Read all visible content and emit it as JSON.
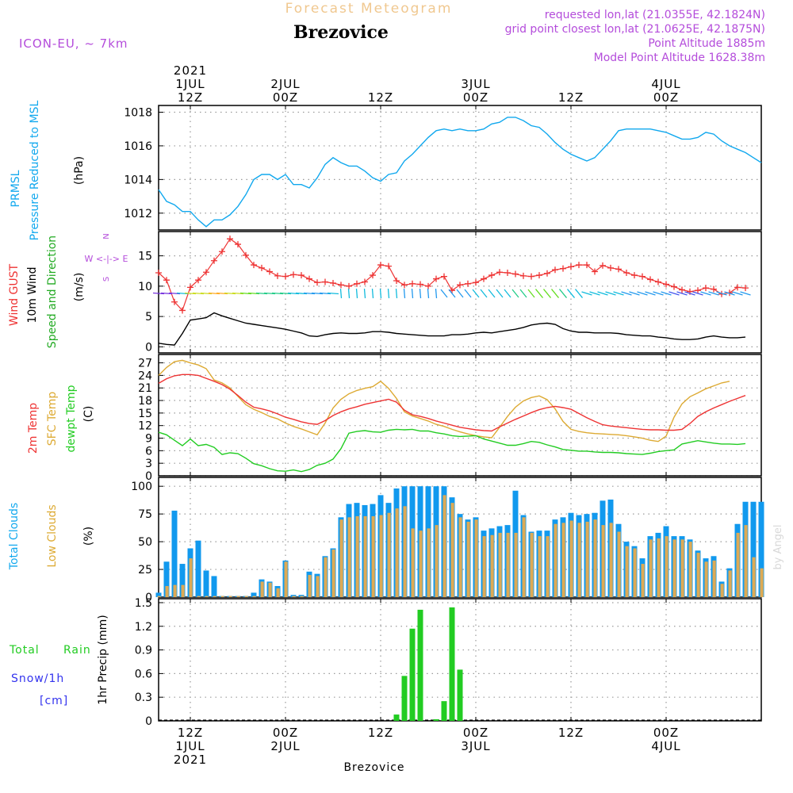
{
  "header": {
    "product": "Forecast Meteogram",
    "location": "Brezovice",
    "model": "ICON-EU, ~ 7km",
    "requested": "requested lon,lat (21.0355E, 42.1824N)",
    "gridpoint": "grid point closest lon,lat (21.0625E, 42.1875N)",
    "altitude": "Point Altitude 1885m",
    "model_altitude": "Model Point Altitude 1628.38m",
    "credit": "by Angel",
    "footer_location": "Brezovice"
  },
  "time_axis": {
    "top": [
      {
        "lines": [
          "2021",
          "1JUL",
          "12Z"
        ]
      },
      {
        "lines": [
          "2JUL",
          "00Z"
        ]
      },
      {
        "lines": [
          "12Z"
        ]
      },
      {
        "lines": [
          "3JUL",
          "00Z"
        ]
      },
      {
        "lines": [
          "12Z"
        ]
      },
      {
        "lines": [
          "4JUL",
          "00Z"
        ]
      }
    ],
    "bottom": [
      {
        "lines": [
          "12Z",
          "1JUL",
          "2021"
        ]
      },
      {
        "lines": [
          "00Z",
          "2JUL"
        ]
      },
      {
        "lines": [
          "12Z"
        ]
      },
      {
        "lines": [
          "00Z",
          "3JUL"
        ]
      },
      {
        "lines": [
          "12Z"
        ]
      },
      {
        "lines": [
          "00Z",
          "4JUL"
        ]
      }
    ],
    "tick_hours": [
      12,
      24,
      36,
      48,
      60,
      72
    ],
    "range_hours": [
      8,
      84
    ]
  },
  "panels": {
    "pressure": {
      "label1": "PRMSL",
      "label2": "Pressure Reduced to MSL",
      "unit": "(hPa)",
      "ticks": [
        "1012",
        "1014",
        "1016",
        "1018"
      ],
      "color": "#11a8ee"
    },
    "wind": {
      "label1": "Wind GUST",
      "label2": "10m Wind",
      "label3": "Speed and Direction",
      "unit": "(m/s)",
      "compass_n": "N",
      "compass_s": "S",
      "compass_ew": "W <-|-> E",
      "ticks": [
        "0",
        "5",
        "10",
        "15"
      ],
      "gust_color": "#ee3333",
      "speed_color": "#000000"
    },
    "temp": {
      "label1": "2m Temp",
      "label2": "SFC Temp",
      "label3": "dewpt Temp",
      "unit": "(C)",
      "ticks": [
        "0",
        "3",
        "6",
        "9",
        "12",
        "15",
        "18",
        "21",
        "24",
        "27"
      ],
      "t2m_color": "#ee3333",
      "sfc_color": "#ddaa33",
      "dew_color": "#22cc22"
    },
    "clouds": {
      "label1": "Total Clouds",
      "label2": "Low Clouds",
      "unit": "(%)",
      "ticks": [
        "0",
        "25",
        "50",
        "75",
        "100"
      ],
      "total_color": "#1199ee",
      "low_color": "#ddaa55"
    },
    "precip": {
      "label1": "Total",
      "label1b": "Rain",
      "label2": "Snow/1h",
      "label3": "[cm]",
      "unit": "1hr Precip (mm)",
      "ticks": [
        "0",
        "0.3",
        "0.6",
        "0.9",
        "1.2",
        "1.5"
      ],
      "rain_color": "#22cc22",
      "snow_color": "#3333ee"
    }
  },
  "chart_data": {
    "type": "line",
    "x_unit": "hours since 2021-07-01 00Z",
    "pressure": {
      "x": [
        8,
        9,
        10,
        11,
        12,
        13,
        14,
        15,
        16,
        17,
        18,
        19,
        20,
        21,
        22,
        23,
        24,
        25,
        26,
        27,
        28,
        29,
        30,
        31,
        32,
        33,
        34,
        35,
        36,
        37,
        38,
        39,
        40,
        41,
        42,
        43,
        44,
        45,
        46,
        47,
        48,
        49,
        50,
        51,
        52,
        53,
        54,
        55,
        56,
        57,
        58,
        59,
        60,
        61,
        62,
        63,
        64,
        65,
        66,
        67,
        68,
        69,
        70,
        71,
        72,
        73,
        74,
        75,
        76,
        77,
        78,
        79,
        80,
        81,
        82,
        83,
        84
      ],
      "y": [
        1013.4,
        1012.7,
        1012.5,
        1012.1,
        1012.1,
        1011.6,
        1011.2,
        1011.6,
        1011.6,
        1011.9,
        1012.4,
        1013.1,
        1014.0,
        1014.3,
        1014.3,
        1014.0,
        1014.3,
        1013.7,
        1013.7,
        1013.5,
        1014.1,
        1014.9,
        1015.3,
        1015.0,
        1014.8,
        1014.8,
        1014.5,
        1014.1,
        1013.9,
        1014.3,
        1014.4,
        1015.1,
        1015.5,
        1016.0,
        1016.5,
        1016.9,
        1017.0,
        1016.9,
        1017.0,
        1016.9,
        1016.9,
        1017.0,
        1017.3,
        1017.4,
        1017.7,
        1017.7,
        1017.5,
        1017.2,
        1017.1,
        1016.7,
        1016.2,
        1015.8,
        1015.5,
        1015.3,
        1015.1,
        1015.3,
        1015.8,
        1016.3,
        1016.9,
        1017.0,
        1017.0,
        1017.0,
        1017.0,
        1016.9,
        1016.8,
        1016.6,
        1016.4,
        1016.4,
        1016.5,
        1016.8,
        1016.7,
        1016.3,
        1016.0,
        1015.8,
        1015.6,
        1015.3,
        1015.0
      ]
    },
    "wind": {
      "x": [
        8,
        9,
        10,
        11,
        12,
        13,
        14,
        15,
        16,
        17,
        18,
        19,
        20,
        21,
        22,
        23,
        24,
        25,
        26,
        27,
        28,
        29,
        30,
        31,
        32,
        33,
        34,
        35,
        36,
        37,
        38,
        39,
        40,
        41,
        42,
        43,
        44,
        45,
        46,
        47,
        48,
        49,
        50,
        51,
        52,
        53,
        54,
        55,
        56,
        57,
        58,
        59,
        60,
        61,
        62,
        63,
        64,
        65,
        66,
        67,
        68,
        69,
        70,
        71,
        72,
        73,
        74,
        75,
        76,
        77,
        78,
        79,
        80,
        81,
        82,
        83,
        84
      ],
      "gust": [
        12.2,
        11.0,
        7.4,
        6.0,
        9.8,
        11.0,
        12.3,
        14.2,
        15.7,
        17.8,
        16.9,
        15.1,
        13.5,
        13.0,
        12.4,
        11.7,
        11.6,
        11.9,
        11.8,
        11.2,
        10.6,
        10.7,
        10.5,
        10.2,
        10.0,
        10.4,
        10.7,
        11.8,
        13.5,
        13.3,
        10.9,
        10.2,
        10.4,
        10.3,
        10.0,
        11.2,
        11.6,
        9.3,
        10.2,
        10.4,
        10.6,
        11.2,
        11.8,
        12.3,
        12.2,
        12.0,
        11.7,
        11.6,
        11.8,
        12.1,
        12.7,
        12.9,
        13.2,
        13.5,
        13.5,
        12.4,
        13.4,
        13.0,
        12.8,
        12.2,
        11.8,
        11.6,
        11.1,
        10.7,
        10.3,
        9.9,
        9.4,
        9.1,
        9.3,
        9.7,
        9.5,
        8.7,
        8.9,
        9.8,
        9.7
      ],
      "speed": [
        0.6,
        0.4,
        0.3,
        2.2,
        4.4,
        4.6,
        4.8,
        5.6,
        5.1,
        4.7,
        4.3,
        3.9,
        3.7,
        3.5,
        3.3,
        3.1,
        2.9,
        2.6,
        2.3,
        1.8,
        1.7,
        2.0,
        2.2,
        2.3,
        2.2,
        2.2,
        2.3,
        2.5,
        2.5,
        2.4,
        2.2,
        2.1,
        2.0,
        1.9,
        1.8,
        1.8,
        1.8,
        2.0,
        2.0,
        2.1,
        2.3,
        2.4,
        2.3,
        2.5,
        2.7,
        2.9,
        3.2,
        3.6,
        3.8,
        3.9,
        3.7,
        3.0,
        2.6,
        2.4,
        2.4,
        2.3,
        2.3,
        2.3,
        2.2,
        2.0,
        1.9,
        1.8,
        1.8,
        1.6,
        1.5,
        1.3,
        1.2,
        1.2,
        1.3,
        1.6,
        1.8,
        1.6,
        1.5,
        1.5,
        1.6
      ]
    },
    "temperature": {
      "x": [
        8,
        9,
        10,
        11,
        12,
        13,
        14,
        15,
        16,
        17,
        18,
        19,
        20,
        21,
        22,
        23,
        24,
        25,
        26,
        27,
        28,
        29,
        30,
        31,
        32,
        33,
        34,
        35,
        36,
        37,
        38,
        39,
        40,
        41,
        42,
        43,
        44,
        45,
        46,
        47,
        48,
        49,
        50,
        51,
        52,
        53,
        54,
        55,
        56,
        57,
        58,
        59,
        60,
        61,
        62,
        63,
        64,
        65,
        66,
        67,
        68,
        69,
        70,
        71,
        72,
        73,
        74,
        75,
        76,
        77,
        78,
        79,
        80,
        81,
        82,
        83,
        84
      ],
      "t2m": [
        22.1,
        23.2,
        23.9,
        24.2,
        24.2,
        24.0,
        23.3,
        22.6,
        21.8,
        20.7,
        19.2,
        17.6,
        16.4,
        16.0,
        15.5,
        14.8,
        14.0,
        13.5,
        12.9,
        12.5,
        12.3,
        13.2,
        14.4,
        15.3,
        16.0,
        16.5,
        17.1,
        17.5,
        17.9,
        18.3,
        17.6,
        15.7,
        14.6,
        14.2,
        13.7,
        13.1,
        12.6,
        12.1,
        11.6,
        11.3,
        11.0,
        10.8,
        10.7,
        11.7,
        12.6,
        13.5,
        14.3,
        15.1,
        15.8,
        16.3,
        16.6,
        16.3,
        15.9,
        14.9,
        13.9,
        13.0,
        12.2,
        11.9,
        11.7,
        11.5,
        11.3,
        11.1,
        11.0,
        11.0,
        10.9,
        10.9,
        11.1,
        12.5,
        14.2,
        15.3,
        16.2,
        17.0,
        17.8,
        18.5,
        19.2
      ],
      "sfc": [
        24.0,
        25.9,
        27.3,
        27.6,
        27.0,
        26.5,
        25.6,
        22.9,
        22.2,
        21.0,
        19.0,
        17.0,
        15.9,
        15.1,
        14.2,
        13.6,
        12.6,
        11.8,
        11.2,
        10.5,
        9.8,
        12.6,
        16.2,
        18.3,
        19.6,
        20.4,
        20.9,
        21.3,
        22.6,
        20.9,
        18.5,
        15.3,
        14.3,
        13.7,
        13.1,
        12.3,
        11.8,
        11.1,
        10.5,
        10.0,
        9.6,
        9.3,
        9.1,
        11.6,
        14.2,
        16.4,
        17.9,
        18.7,
        19.1,
        18.2,
        16.0,
        13.0,
        11.1,
        10.6,
        10.3,
        10.1,
        10.0,
        9.9,
        9.8,
        9.6,
        9.3,
        9.0,
        8.5,
        8.2,
        9.5,
        14.0,
        17.2,
        18.9,
        19.8,
        20.8,
        21.5,
        22.2,
        22.6
      ],
      "dew": [
        10.4,
        9.8,
        8.5,
        7.2,
        8.8,
        7.2,
        7.5,
        6.8,
        5.1,
        5.5,
        5.3,
        4.2,
        2.9,
        2.4,
        1.7,
        1.2,
        1.1,
        1.4,
        1.0,
        1.5,
        2.5,
        3.0,
        4.0,
        6.5,
        10.2,
        10.6,
        10.8,
        10.5,
        10.4,
        10.9,
        11.1,
        11.0,
        11.1,
        10.7,
        10.7,
        10.3,
        10.0,
        9.6,
        9.4,
        9.5,
        9.6,
        8.8,
        8.3,
        7.8,
        7.3,
        7.3,
        7.7,
        8.2,
        8.0,
        7.4,
        6.9,
        6.3,
        6.1,
        5.9,
        5.9,
        5.7,
        5.6,
        5.6,
        5.5,
        5.3,
        5.2,
        5.1,
        5.4,
        5.8,
        6.0,
        6.2,
        7.6,
        8.0,
        8.4,
        8.1,
        7.8,
        7.6,
        7.6,
        7.5,
        7.7
      ]
    },
    "clouds": {
      "x": [
        8,
        9,
        10,
        11,
        12,
        13,
        14,
        15,
        16,
        17,
        18,
        19,
        20,
        21,
        22,
        23,
        24,
        25,
        26,
        27,
        28,
        29,
        30,
        31,
        32,
        33,
        34,
        35,
        36,
        37,
        38,
        39,
        40,
        41,
        42,
        43,
        44,
        45,
        46,
        47,
        48,
        49,
        50,
        51,
        52,
        53,
        54,
        55,
        56,
        57,
        58,
        59,
        60,
        61,
        62,
        63,
        64,
        65,
        66,
        67,
        68,
        69,
        70,
        71,
        72,
        73,
        74,
        75,
        76,
        77,
        78,
        79,
        80,
        81,
        82,
        83,
        84
      ],
      "total": [
        4,
        32,
        78,
        30,
        44,
        51,
        24,
        19,
        1,
        1,
        1,
        1,
        4,
        16,
        14,
        10,
        33,
        2,
        2,
        23,
        21,
        37,
        44,
        72,
        84,
        85,
        83,
        84,
        92,
        85,
        98,
        100,
        100,
        100,
        100,
        100,
        100,
        90,
        75,
        70,
        72,
        60,
        62,
        64,
        65,
        96,
        74,
        59,
        60,
        60,
        70,
        72,
        76,
        74,
        75,
        76,
        87,
        88,
        66,
        50,
        46,
        35,
        55,
        58,
        64,
        55,
        55,
        52,
        42,
        35,
        37,
        14,
        26,
        66,
        86,
        86,
        86
      ],
      "low": [
        1,
        10,
        11,
        11,
        35,
        1,
        1,
        1,
        1,
        1,
        1,
        1,
        1,
        14,
        13,
        8,
        32,
        1,
        1,
        20,
        19,
        36,
        43,
        70,
        72,
        73,
        73,
        73,
        74,
        76,
        80,
        82,
        62,
        60,
        62,
        65,
        92,
        85,
        72,
        68,
        70,
        55,
        56,
        58,
        58,
        58,
        72,
        58,
        55,
        55,
        66,
        67,
        69,
        67,
        68,
        70,
        65,
        67,
        59,
        46,
        44,
        30,
        52,
        53,
        55,
        52,
        52,
        50,
        40,
        32,
        33,
        12,
        24,
        58,
        65,
        36,
        26
      ]
    },
    "precip": {
      "x": [
        8,
        9,
        10,
        11,
        12,
        13,
        14,
        15,
        16,
        17,
        18,
        19,
        20,
        21,
        22,
        23,
        24,
        25,
        26,
        27,
        28,
        29,
        30,
        31,
        32,
        33,
        34,
        35,
        36,
        37,
        38,
        39,
        40,
        41,
        42,
        43,
        44,
        45,
        46,
        47,
        48,
        49,
        50,
        51,
        52,
        53,
        54,
        55,
        56,
        57,
        58,
        59,
        60,
        61,
        62,
        63,
        64,
        65,
        66,
        67,
        68,
        69,
        70,
        71,
        72,
        73,
        74,
        75,
        76,
        77,
        78,
        79,
        80,
        81,
        82,
        83,
        84
      ],
      "rain": [
        0,
        0,
        0,
        0,
        0,
        0,
        0,
        0,
        0,
        0,
        0,
        0,
        0,
        0,
        0,
        0,
        0,
        0,
        0,
        0,
        0,
        0,
        0,
        0,
        0,
        0,
        0,
        0,
        0,
        0,
        0.08,
        0.57,
        1.17,
        1.41,
        0,
        0.02,
        0.25,
        1.44,
        0.65,
        0,
        0,
        0,
        0,
        0,
        0,
        0,
        0,
        0,
        0,
        0,
        0,
        0,
        0,
        0,
        0,
        0,
        0,
        0,
        0,
        0,
        0,
        0,
        0,
        0,
        0,
        0,
        0,
        0,
        0,
        0,
        0,
        0,
        0,
        0,
        0,
        0,
        0
      ]
    }
  }
}
